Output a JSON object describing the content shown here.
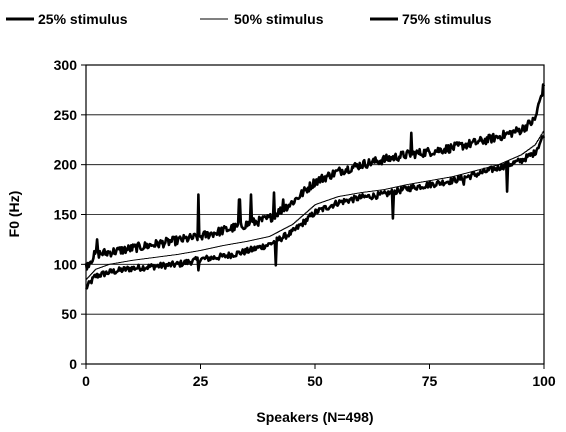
{
  "chart_data": {
    "type": "line",
    "title": "",
    "xlabel": "Speakers (N=498)",
    "ylabel": "F0 (Hz)",
    "xlim": [
      0,
      100
    ],
    "ylim": [
      0,
      300
    ],
    "x_ticks": [
      "0",
      "25",
      "50",
      "75",
      "100"
    ],
    "y_ticks": [
      "0",
      "50",
      "100",
      "150",
      "200",
      "250",
      "300"
    ],
    "grid": "horizontal",
    "legend_position": "top",
    "series": [
      {
        "name": "25% stimulus",
        "line": "thick",
        "noise": "medium",
        "x": [
          0,
          2,
          5,
          10,
          15,
          20,
          25,
          30,
          35,
          40,
          45,
          50,
          55,
          60,
          65,
          70,
          75,
          80,
          85,
          90,
          95,
          98,
          100
        ],
        "y": [
          76,
          88,
          92,
          96,
          98,
          100,
          105,
          108,
          113,
          120,
          132,
          152,
          162,
          167,
          170,
          176,
          180,
          184,
          190,
          197,
          204,
          212,
          230
        ]
      },
      {
        "name": "50% stimulus",
        "line": "thin",
        "noise": "none",
        "x": [
          0,
          2,
          5,
          10,
          15,
          20,
          25,
          30,
          35,
          40,
          45,
          50,
          55,
          60,
          65,
          70,
          75,
          80,
          85,
          90,
          95,
          98,
          100
        ],
        "y": [
          85,
          95,
          100,
          104,
          107,
          110,
          114,
          119,
          123,
          128,
          140,
          160,
          168,
          172,
          175,
          180,
          184,
          188,
          194,
          200,
          210,
          220,
          235
        ]
      },
      {
        "name": "75% stimulus",
        "line": "thick",
        "noise": "high",
        "x": [
          0,
          2,
          5,
          10,
          15,
          20,
          25,
          30,
          35,
          40,
          45,
          50,
          55,
          60,
          65,
          70,
          75,
          80,
          85,
          90,
          95,
          98,
          100
        ],
        "y": [
          98,
          110,
          112,
          116,
          120,
          124,
          128,
          134,
          140,
          146,
          162,
          183,
          193,
          200,
          205,
          210,
          213,
          217,
          222,
          228,
          235,
          245,
          280
        ]
      }
    ],
    "spikes": [
      {
        "series": 2,
        "x": 2.5,
        "y": 125
      },
      {
        "series": 2,
        "x": 24.5,
        "y": 170
      },
      {
        "series": 2,
        "x": 33.5,
        "y": 165
      },
      {
        "series": 2,
        "x": 36,
        "y": 170
      },
      {
        "series": 2,
        "x": 41,
        "y": 172
      },
      {
        "series": 2,
        "x": 43,
        "y": 165
      },
      {
        "series": 2,
        "x": 71,
        "y": 232
      },
      {
        "series": 0,
        "x": 24.5,
        "y": 94
      },
      {
        "series": 0,
        "x": 41.5,
        "y": 99
      },
      {
        "series": 0,
        "x": 67,
        "y": 146
      },
      {
        "series": 0,
        "x": 82.5,
        "y": 180
      },
      {
        "series": 0,
        "x": 92,
        "y": 173
      }
    ]
  }
}
